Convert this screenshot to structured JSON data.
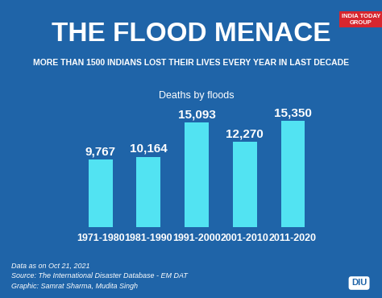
{
  "chart_data": {
    "type": "bar",
    "title": "THE FLOOD MENACE",
    "subtitle": "MORE THAN 1500 INDIANS LOST THEIR LIVES EVERY YEAR IN LAST DECADE",
    "chart_title": "Deaths by floods",
    "categories": [
      "1971-1980",
      "1981-1990",
      "1991-2000",
      "2001-2010",
      "2011-2020"
    ],
    "values": [
      9767,
      10164,
      15093,
      12270,
      15350
    ],
    "value_labels": [
      "9,767",
      "10,164",
      "15,093",
      "12,270",
      "15,350"
    ],
    "color": "#52e3f2",
    "ylim": [
      0,
      17000
    ],
    "data_labels": true,
    "tick_labels": "x",
    "grid": false,
    "notes": [
      "Data as on Oct 21, 2021",
      "Source: The International Disaster Database - EM DAT",
      "Graphic: Samrat Sharma, Mudita Singh"
    ],
    "logo": "INDIA TODAY GROUP",
    "badge": "DIU"
  }
}
